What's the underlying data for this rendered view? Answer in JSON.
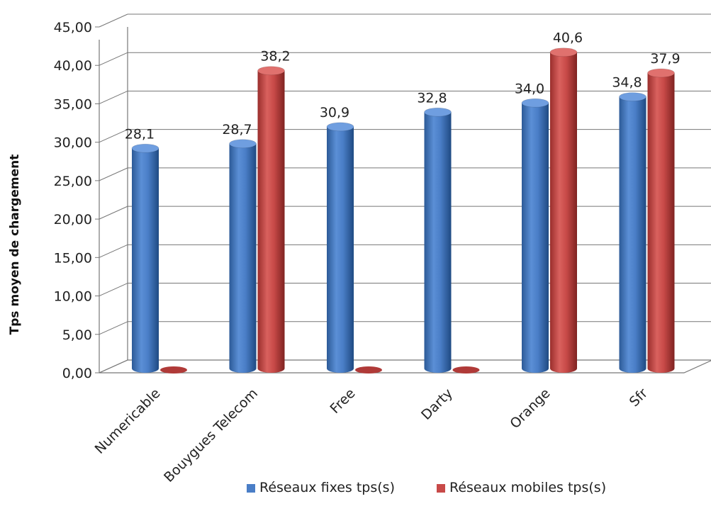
{
  "chart_data": {
    "type": "bar",
    "title": "",
    "xlabel": "",
    "ylabel": "Tps moyen de chargement",
    "ylim": [
      0,
      45
    ],
    "yticks": [
      "0,00",
      "5,00",
      "10,00",
      "15,00",
      "20,00",
      "25,00",
      "30,00",
      "35,00",
      "40,00",
      "45,00"
    ],
    "grid": true,
    "legend_position": "bottom",
    "categories": [
      "Numericable",
      "Bouygues Telecom",
      "Free",
      "Darty",
      "Orange",
      "Sfr"
    ],
    "series": [
      {
        "name": "Réseaux fixes tps(s)",
        "color": "#4a7ec7",
        "values": [
          28.1,
          28.7,
          30.9,
          32.8,
          34.0,
          34.8
        ],
        "labels": [
          "28,1",
          "28,7",
          "30,9",
          "32,8",
          "34,0",
          "34,8"
        ]
      },
      {
        "name": "Réseaux mobiles tps(s)",
        "color": "#c84a48",
        "values": [
          0,
          38.2,
          0,
          0,
          40.6,
          37.9
        ],
        "labels": [
          "",
          "38,2",
          "",
          "",
          "40,6",
          "37,9"
        ]
      }
    ]
  }
}
